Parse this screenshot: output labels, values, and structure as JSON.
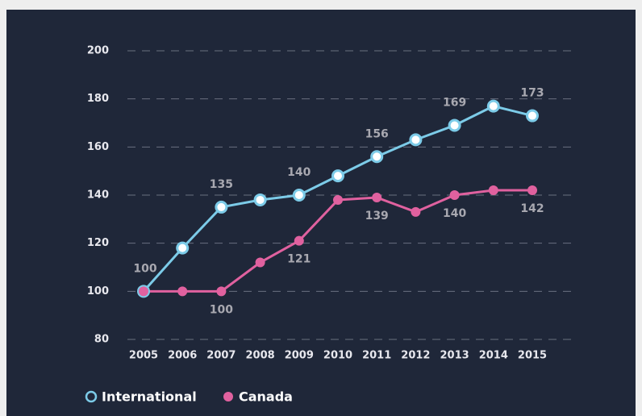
{
  "chart_data": {
    "type": "line",
    "categories": [
      "2005",
      "2006",
      "2007",
      "2008",
      "2009",
      "2010",
      "2011",
      "2012",
      "2013",
      "2014",
      "2015"
    ],
    "series": [
      {
        "name": "International",
        "color": "#7ccbe8",
        "marker": "open",
        "values": [
          100,
          118,
          135,
          138,
          140,
          148,
          156,
          163,
          169,
          177,
          173
        ],
        "value_labels": [
          "100",
          null,
          "135",
          null,
          "140",
          null,
          "156",
          null,
          "169",
          null,
          "173"
        ]
      },
      {
        "name": "Canada",
        "color": "#e0619f",
        "marker": "filled",
        "values": [
          100,
          100,
          100,
          112,
          121,
          138,
          139,
          133,
          140,
          142,
          142
        ],
        "value_labels": [
          null,
          null,
          "100",
          null,
          "121",
          null,
          "139",
          null,
          "140",
          null,
          "142"
        ]
      }
    ],
    "ylim": [
      80,
      200
    ],
    "yticks": [
      80,
      100,
      120,
      140,
      160,
      180,
      200
    ],
    "grid": true,
    "legend": "bottom-left"
  }
}
